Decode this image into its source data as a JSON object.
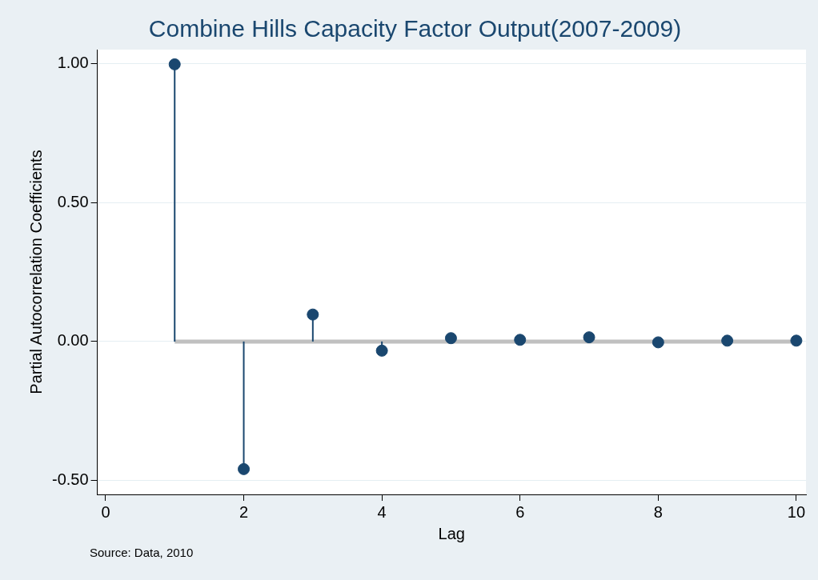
{
  "chart_data": {
    "type": "lollipop",
    "title": "Combine Hills Capacity Factor Output(2007-2009)",
    "xlabel": "Lag",
    "ylabel": "Partial Autocorrelation Coefficients",
    "annotations": [
      "Source:  Data, 2010"
    ],
    "x": [
      1,
      2,
      3,
      4,
      5,
      6,
      7,
      8,
      9,
      10
    ],
    "series": [
      {
        "color": "#1a476f",
        "values": [
          0.997,
          -0.459,
          0.097,
          -0.033,
          0.012,
          0.006,
          0.015,
          -0.003,
          0.003,
          0.003
        ]
      }
    ],
    "xlim": [
      -0.12,
      10.14
    ],
    "xticks": [
      0,
      2,
      4,
      6,
      8,
      10
    ],
    "ylim": [
      -0.55,
      1.05
    ],
    "yticks": [
      {
        "value": -0.5,
        "label": "-0.50"
      },
      {
        "value": 0,
        "label": "0.00"
      },
      {
        "value": 0.5,
        "label": "0.50"
      },
      {
        "value": 1,
        "label": "1.00"
      }
    ],
    "ref_lines": [
      {
        "axis": "y",
        "value": 0,
        "color": "#c0c0c0"
      }
    ],
    "grid": "y",
    "marker": "circle",
    "legend": false
  }
}
